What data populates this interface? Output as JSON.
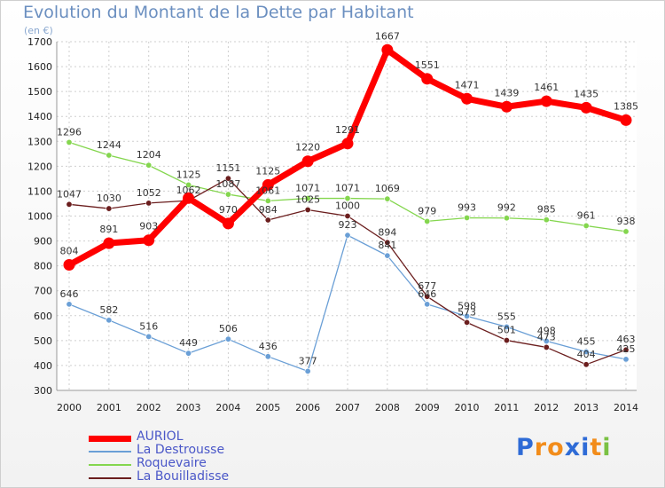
{
  "header": {
    "title": "Evolution du Montant de la Dette par Habitant",
    "unit": "(en €)"
  },
  "brand": {
    "letters": [
      "P",
      "r",
      "o",
      "x",
      "i",
      "t",
      "i"
    ],
    "colors": [
      "#2e6bd6",
      "#f28c1a",
      "#f28c1a",
      "#2e6bd6",
      "#2e6bd6",
      "#f28c1a",
      "#7ac143"
    ]
  },
  "chart_data": {
    "type": "line",
    "x": [
      "2000",
      "2001",
      "2002",
      "2003",
      "2004",
      "2005",
      "2006",
      "2007",
      "2008",
      "2009",
      "2010",
      "2011",
      "2012",
      "2013",
      "2014"
    ],
    "yticks": [
      300,
      400,
      500,
      600,
      700,
      800,
      900,
      1000,
      1100,
      1200,
      1300,
      1400,
      1500,
      1600,
      1700
    ],
    "ylim": [
      300,
      1700
    ],
    "grid": true,
    "legend_position": "bottom-left",
    "series": [
      {
        "name": "AURIOL",
        "color": "#ff0000",
        "values": [
          804,
          891,
          903,
          1072,
          970,
          1125,
          1220,
          1291,
          1667,
          1551,
          1471,
          1439,
          1461,
          1435,
          1385
        ],
        "labels": [
          "804",
          "891",
          "903",
          "",
          "970",
          "1125",
          "1220",
          "1291",
          "1667",
          "1551",
          "1471",
          "1439",
          "1461",
          "1435",
          "1385"
        ]
      },
      {
        "name": "La Destrousse",
        "color": "#6a9fd6",
        "values": [
          646,
          582,
          516,
          449,
          506,
          436,
          377,
          923,
          841,
          646,
          598,
          555,
          498,
          455,
          425
        ],
        "labels": [
          "646",
          "582",
          "516",
          "449",
          "506",
          "436",
          "377",
          "923",
          "841",
          "646",
          "598",
          "555",
          "498",
          "455",
          "425"
        ]
      },
      {
        "name": "Roquevaire",
        "color": "#84d64e",
        "values": [
          1296,
          1244,
          1204,
          1125,
          1087,
          1061,
          1071,
          1071,
          1069,
          979,
          993,
          992,
          985,
          961,
          938
        ],
        "labels": [
          "1296",
          "1244",
          "1204",
          "1125",
          "1087",
          "1061",
          "1071",
          "1071",
          "1069",
          "979",
          "993",
          "992",
          "985",
          "961",
          "938"
        ]
      },
      {
        "name": "La Bouilladisse",
        "color": "#6b1e1e",
        "values": [
          1047,
          1030,
          1052,
          1062,
          1151,
          984,
          1025,
          1000,
          894,
          677,
          573,
          501,
          473,
          404,
          463
        ],
        "labels": [
          "1047",
          "1030",
          "1052",
          "1062",
          "1151",
          "984",
          "1025",
          "1000",
          "894",
          "677",
          "573",
          "501",
          "473",
          "404",
          "463"
        ]
      }
    ]
  }
}
